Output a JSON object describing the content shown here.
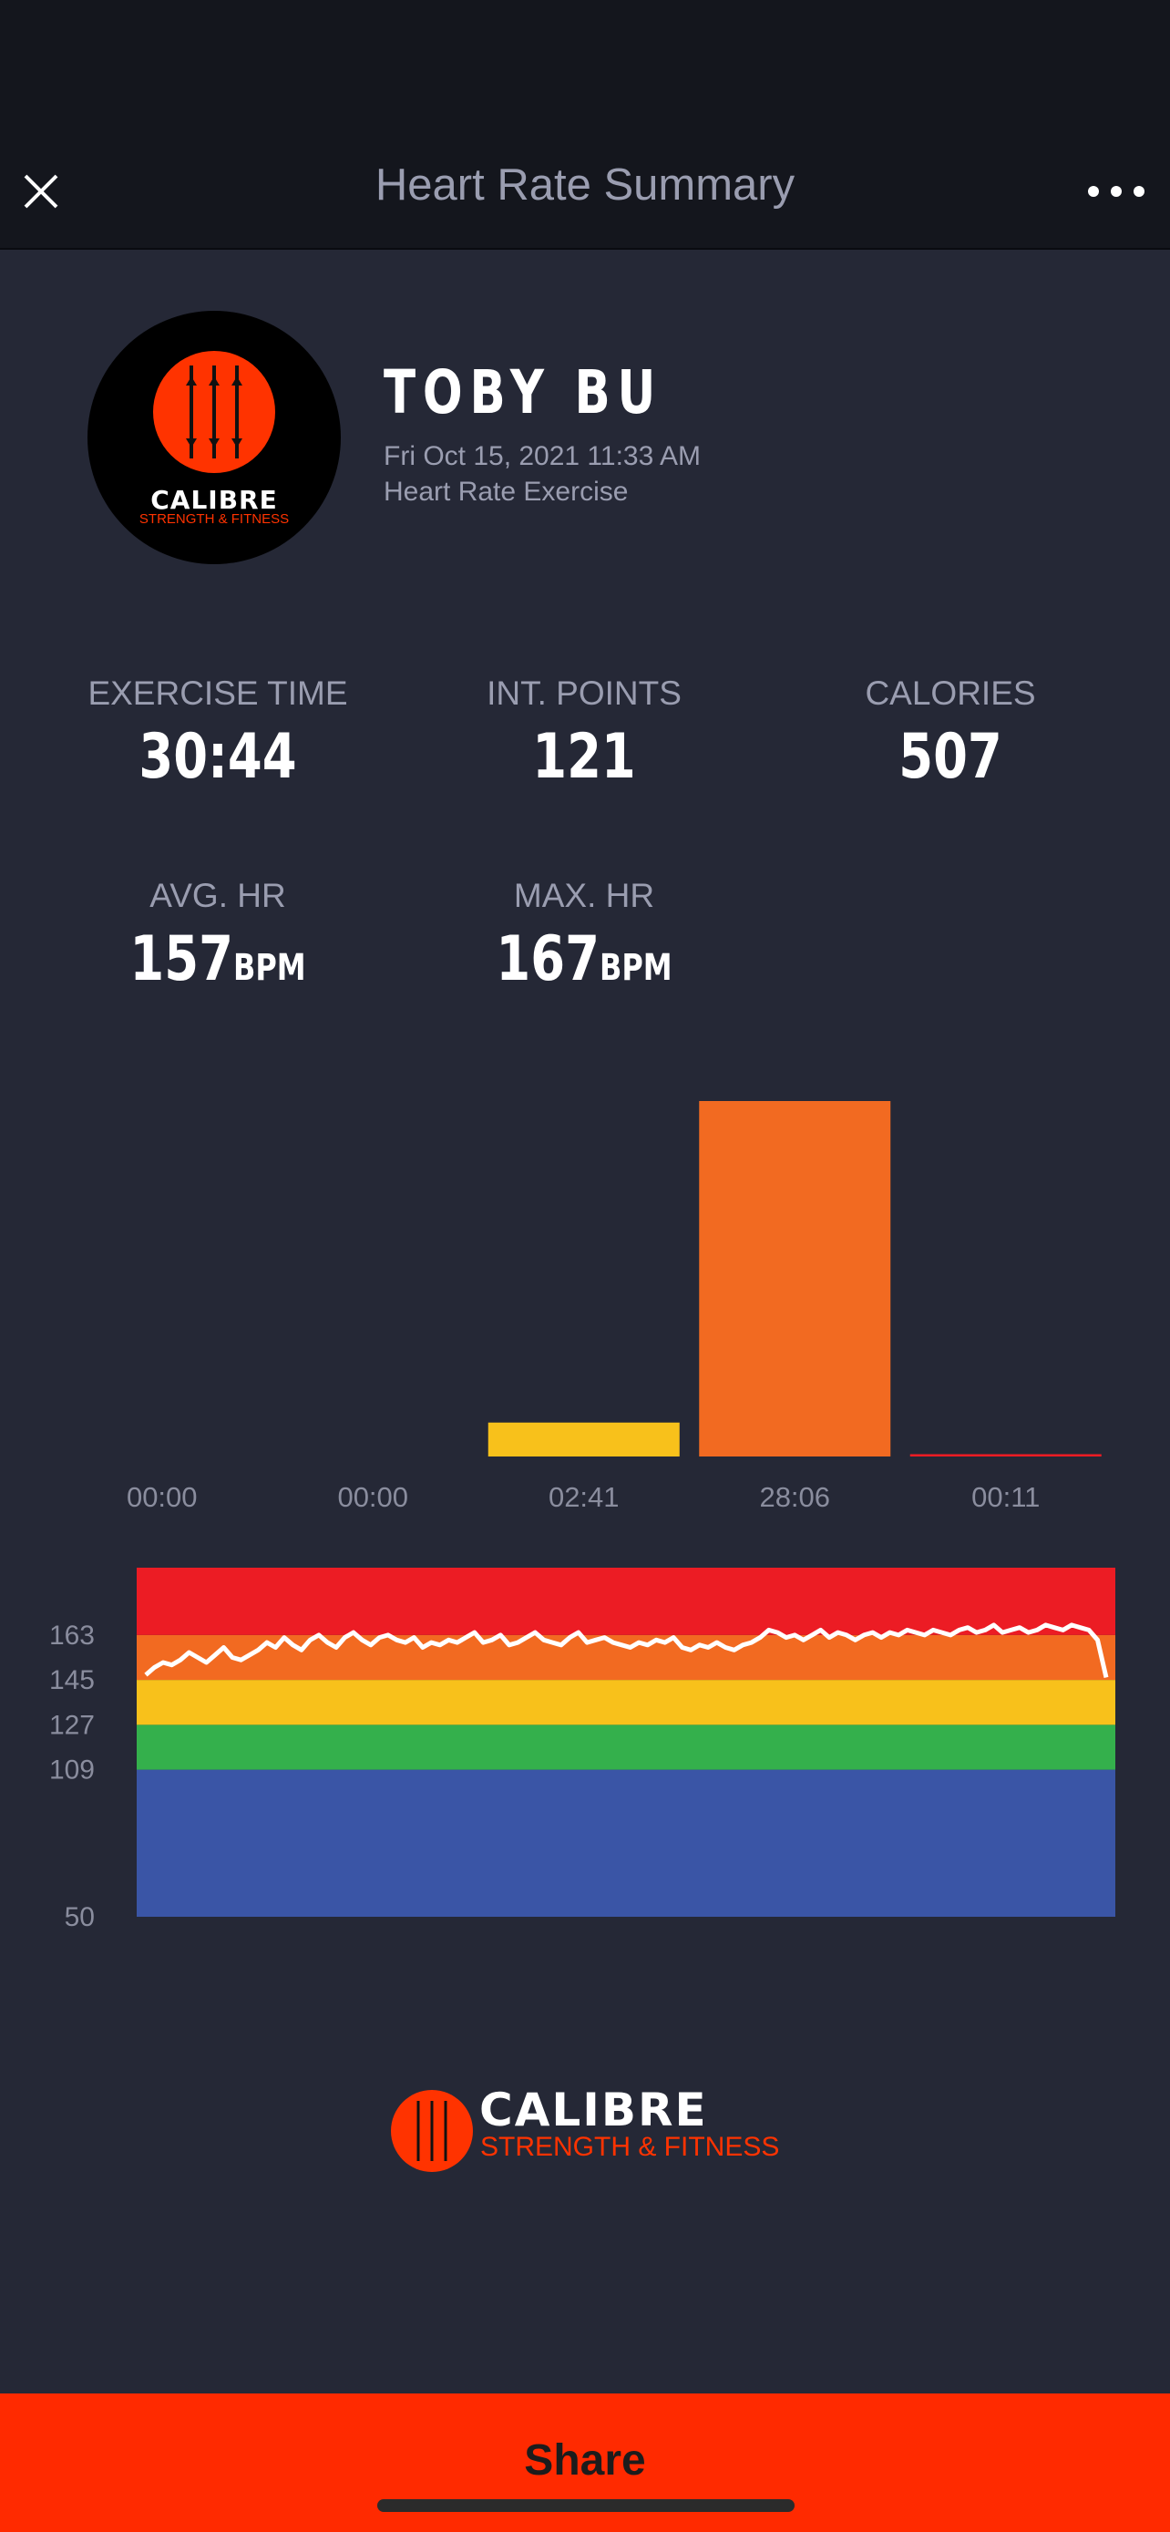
{
  "header": {
    "title": "Heart Rate Summary",
    "close_icon": "close-icon",
    "more_icon": "more-horizontal-icon"
  },
  "profile": {
    "name": "TOBY BU",
    "datetime": "Fri Oct 15, 2021 11:33 AM",
    "activity": "Heart Rate Exercise",
    "logo_text": "CALIBRE",
    "logo_subtext": "STRENGTH & FITNESS"
  },
  "stats": {
    "exercise_time": {
      "label": "EXERCISE TIME",
      "value": "30:44"
    },
    "int_points": {
      "label": "INT. POINTS",
      "value": "121"
    },
    "calories": {
      "label": "CALORIES",
      "value": "507"
    },
    "avg_hr": {
      "label": "AVG. HR",
      "value": "157",
      "unit": "BPM"
    },
    "max_hr": {
      "label": "MAX. HR",
      "value": "167",
      "unit": "BPM"
    }
  },
  "chart_data": [
    {
      "type": "bar",
      "categories": [
        "00:00",
        "00:00",
        "02:41",
        "28:06",
        "00:11"
      ],
      "values": [
        0,
        0,
        161,
        1686,
        11
      ],
      "colors": [
        "#3a55a6",
        "#34b04c",
        "#f8c11b",
        "#f26a21",
        "#ec1c24"
      ],
      "ylim": [
        0,
        1686
      ]
    },
    {
      "type": "area",
      "zones": [
        {
          "from": 50,
          "to": 109,
          "color": "#3a55a6"
        },
        {
          "from": 109,
          "to": 127,
          "color": "#34b04c"
        },
        {
          "from": 127,
          "to": 145,
          "color": "#f8c11b"
        },
        {
          "from": 145,
          "to": 163,
          "color": "#f26a21"
        },
        {
          "from": 163,
          "to": 190,
          "color": "#ec1c24"
        }
      ],
      "y_ticks": [
        "163",
        "145",
        "127",
        "109",
        "50"
      ],
      "y_tick_values": [
        163,
        145,
        127,
        109,
        50
      ],
      "ylim": [
        50,
        190
      ],
      "series": [
        {
          "values": [
            147,
            150,
            152,
            151,
            153,
            156,
            154,
            152,
            155,
            158,
            154,
            153,
            155,
            157,
            160,
            158,
            162,
            159,
            157,
            161,
            163,
            160,
            158,
            162,
            164,
            161,
            159,
            162,
            163,
            161,
            160,
            162,
            158,
            160,
            159,
            161,
            160,
            162,
            164,
            160,
            161,
            163,
            159,
            160,
            162,
            164,
            161,
            160,
            159,
            162,
            164,
            160,
            161,
            162,
            160,
            159,
            158,
            160,
            159,
            161,
            160,
            162,
            158,
            157,
            159,
            158,
            160,
            158,
            157,
            159,
            160,
            162,
            165,
            164,
            162,
            163,
            161,
            163,
            165,
            162,
            164,
            163,
            161,
            163,
            164,
            162,
            164,
            163,
            165,
            164,
            163,
            165,
            164,
            163,
            165,
            166,
            164,
            165,
            167,
            164,
            165,
            166,
            164,
            165,
            167,
            166,
            165,
            167,
            166,
            165,
            161,
            146
          ]
        }
      ]
    }
  ],
  "footer": {
    "logo_text": "CALIBRE",
    "logo_subtext": "STRENGTH & FITNESS"
  },
  "share": {
    "label": "Share"
  }
}
